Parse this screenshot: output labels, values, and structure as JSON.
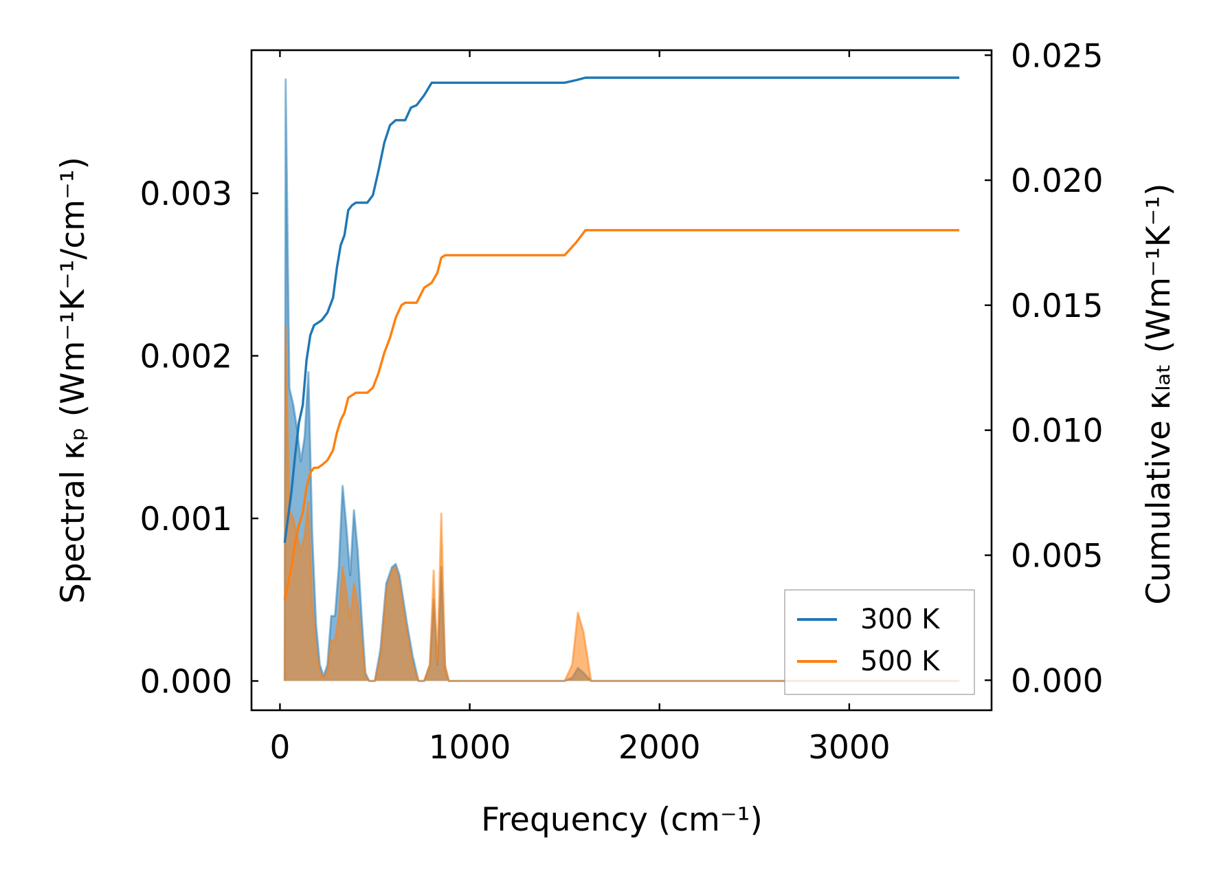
{
  "chart_data": {
    "type": "line",
    "title": "",
    "xlabel": "Frequency (cm⁻¹)",
    "ylabel_left": "Spectral κₚ (Wm⁻¹K⁻¹/cm⁻¹)",
    "ylabel_right": "Cumulative κₗₐₜ (Wm⁻¹K⁻¹)",
    "xlim": [
      -150,
      3750
    ],
    "ylim_left": [
      -0.00018,
      0.00388
    ],
    "ylim_right": [
      -0.0012,
      0.0252
    ],
    "xticks": [
      0,
      1000,
      2000,
      3000
    ],
    "xtick_labels": [
      "0",
      "1000",
      "2000",
      "3000"
    ],
    "yticks_left": [
      0,
      0.001,
      0.002,
      0.003
    ],
    "ytick_labels_left": [
      "0.000",
      "0.001",
      "0.002",
      "0.003"
    ],
    "yticks_right": [
      0,
      0.005,
      0.01,
      0.015,
      0.02,
      0.025
    ],
    "ytick_labels_right": [
      "0.000",
      "0.005",
      "0.010",
      "0.015",
      "0.020",
      "0.025"
    ],
    "grid": false,
    "legend_position": "lower-right",
    "series": [
      {
        "name": "300 K",
        "color": "#1f77b4",
        "spectral": {
          "x": [
            25,
            30,
            50,
            70,
            90,
            110,
            130,
            150,
            170,
            190,
            210,
            230,
            250,
            270,
            290,
            310,
            330,
            350,
            370,
            390,
            410,
            430,
            450,
            470,
            500,
            530,
            560,
            590,
            610,
            630,
            650,
            670,
            700,
            730,
            760,
            790,
            810,
            830,
            850,
            870,
            890,
            910,
            1000,
            1500,
            1540,
            1570,
            1600,
            1640,
            2000,
            3000,
            3580
          ],
          "values": [
            0.0,
            0.0037,
            0.0018,
            0.0017,
            0.00155,
            0.00135,
            0.0015,
            0.0019,
            0.0009,
            0.00035,
            0.0001,
            3e-05,
            0.0001,
            0.0004,
            0.0004,
            0.0007,
            0.0012,
            0.00095,
            0.00065,
            0.00105,
            0.0008,
            0.0004,
            5e-05,
            0.0,
            0.0,
            0.0002,
            0.0006,
            0.0007,
            0.00072,
            0.00065,
            0.0005,
            0.00035,
            0.00015,
            0.0,
            0.0,
            0.0001,
            0.0005,
            0.0001,
            0.0007,
            8e-05,
            0.0,
            0.0,
            0.0,
            0.0,
            2e-05,
            8e-05,
            5e-05,
            0.0,
            0.0,
            0.0,
            0.0
          ]
        },
        "cumulative": {
          "x": [
            25,
            60,
            80,
            100,
            120,
            140,
            160,
            180,
            200,
            220,
            250,
            280,
            300,
            320,
            340,
            360,
            380,
            400,
            430,
            460,
            490,
            520,
            550,
            580,
            610,
            640,
            660,
            690,
            720,
            760,
            800,
            830,
            850,
            870,
            900,
            1000,
            1500,
            1560,
            1610,
            2000,
            3000,
            3580
          ],
          "values": [
            0.0055,
            0.0075,
            0.009,
            0.0103,
            0.011,
            0.0128,
            0.0138,
            0.0142,
            0.0143,
            0.0144,
            0.0147,
            0.0153,
            0.0165,
            0.0174,
            0.0178,
            0.0188,
            0.019,
            0.0191,
            0.0191,
            0.0191,
            0.0194,
            0.0204,
            0.0215,
            0.0222,
            0.0224,
            0.0224,
            0.0224,
            0.0229,
            0.023,
            0.0234,
            0.0239,
            0.0239,
            0.0239,
            0.0239,
            0.0239,
            0.0239,
            0.0239,
            0.024,
            0.0241,
            0.0241,
            0.0241,
            0.0241
          ]
        }
      },
      {
        "name": "500 K",
        "color": "#ff7f0e",
        "spectral": {
          "x": [
            25,
            30,
            50,
            70,
            90,
            110,
            130,
            150,
            170,
            190,
            210,
            230,
            250,
            270,
            290,
            310,
            330,
            350,
            370,
            390,
            410,
            430,
            450,
            470,
            500,
            530,
            560,
            590,
            610,
            630,
            650,
            670,
            700,
            730,
            760,
            790,
            810,
            830,
            850,
            870,
            890,
            910,
            1000,
            1500,
            1540,
            1570,
            1600,
            1640,
            2000,
            3000,
            3580
          ],
          "values": [
            0.0,
            0.00218,
            0.00105,
            0.001,
            0.0009,
            0.0008,
            0.0009,
            0.0011,
            0.0005,
            0.0002,
            6e-05,
            2e-05,
            6e-05,
            0.00025,
            0.00025,
            0.0004,
            0.0007,
            0.00055,
            0.00038,
            0.0006,
            0.00048,
            0.00025,
            3e-05,
            0.0,
            0.0,
            0.00015,
            0.00055,
            0.00068,
            0.0007,
            0.0006,
            0.00045,
            0.0003,
            0.0001,
            0.0,
            0.0,
            0.0001,
            0.00068,
            0.00012,
            0.00103,
            0.0001,
            0.0,
            0.0,
            0.0,
            0.0,
            0.0001,
            0.00042,
            0.0003,
            0.0,
            0.0,
            0.0,
            0.0
          ]
        },
        "cumulative": {
          "x": [
            25,
            60,
            80,
            100,
            120,
            140,
            160,
            180,
            200,
            220,
            250,
            280,
            300,
            320,
            340,
            360,
            380,
            400,
            430,
            460,
            490,
            520,
            550,
            580,
            610,
            640,
            660,
            690,
            720,
            760,
            800,
            830,
            850,
            870,
            900,
            1000,
            1500,
            1560,
            1610,
            2000,
            3000,
            3580
          ],
          "values": [
            0.0032,
            0.0045,
            0.0055,
            0.0062,
            0.0067,
            0.0077,
            0.0083,
            0.0085,
            0.0085,
            0.0086,
            0.0088,
            0.0092,
            0.0099,
            0.0104,
            0.0107,
            0.0113,
            0.0114,
            0.0115,
            0.0115,
            0.0115,
            0.0117,
            0.0123,
            0.0131,
            0.0137,
            0.0145,
            0.015,
            0.0151,
            0.0151,
            0.0151,
            0.0157,
            0.0159,
            0.0163,
            0.0169,
            0.017,
            0.017,
            0.017,
            0.017,
            0.0175,
            0.018,
            0.018,
            0.018,
            0.018
          ]
        }
      }
    ]
  }
}
